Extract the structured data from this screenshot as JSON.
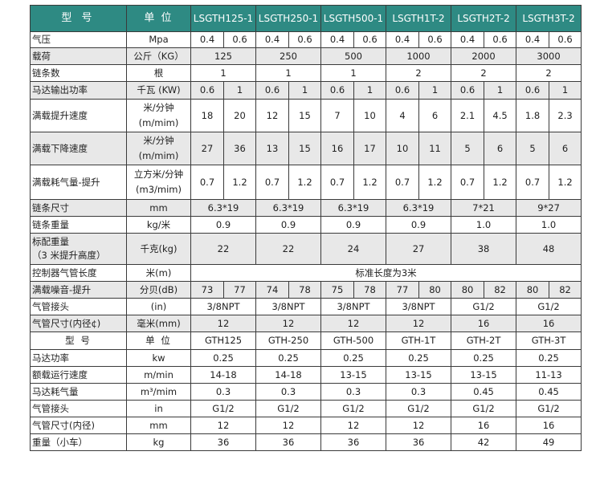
{
  "header": [
    "型 号",
    "单 位",
    "LSGTH125-1",
    "LSGTH250-1",
    "LSGTH500-1",
    "LSGTH1T-2",
    "LSGTH2T-2",
    "LSGTH3T-2"
  ],
  "rows": {
    "pressure": {
      "label": "气压",
      "unit": "Mpa",
      "cells": [
        "0.4",
        "0.6",
        "0.4",
        "0.6",
        "0.4",
        "0.6",
        "0.4",
        "0.6",
        "0.4",
        "0.6",
        "0.4",
        "0.6"
      ]
    },
    "load": {
      "label": "载荷",
      "unit": "公斤（KG）",
      "cells": [
        "125",
        "250",
        "500",
        "1000",
        "2000",
        "3000"
      ]
    },
    "chains": {
      "label": "链条数",
      "unit": "根",
      "cells": [
        "1",
        "1",
        "1",
        "2",
        "2",
        "2"
      ]
    },
    "motor_power": {
      "label": "马达输出功率",
      "unit": "千瓦 (KW)",
      "cells": [
        "0.6",
        "1",
        "0.6",
        "1",
        "0.6",
        "1",
        "0.6",
        "1",
        "0.6",
        "1",
        "0.6",
        "1"
      ]
    },
    "lift_speed": {
      "label": "满载提升速度",
      "unit1": "米/分钟",
      "unit2": "(m/mim)",
      "cells": [
        "18",
        "20",
        "12",
        "15",
        "7",
        "10",
        "4",
        "6",
        "2.1",
        "4.5",
        "1.8",
        "2.3"
      ]
    },
    "lower_speed": {
      "label": "满载下降速度",
      "unit1": "米/分钟",
      "unit2": "(m/mim)",
      "cells": [
        "27",
        "36",
        "13",
        "15",
        "16",
        "17",
        "10",
        "11",
        "5",
        "6",
        "5",
        "6"
      ]
    },
    "air_consumption": {
      "label": "满载耗气量-提升",
      "unit1": "立方米/分钟",
      "unit2": "(m3/mim)",
      "cells": [
        "0.7",
        "1.2",
        "0.7",
        "1.2",
        "0.7",
        "1.2",
        "0.7",
        "1.2",
        "0.7",
        "1.2",
        "0.7",
        "1.2"
      ]
    },
    "chain_size": {
      "label": "链条尺寸",
      "unit": "mm",
      "cells": [
        "6.3*19",
        "6.3*19",
        "6.3*19",
        "6.3*19",
        "7*21",
        "9*27"
      ]
    },
    "chain_weight": {
      "label": "链条重量",
      "unit": "kg/米",
      "cells": [
        "0.9",
        "0.9",
        "0.9",
        "0.9",
        "1.0",
        "1.0"
      ]
    },
    "std_weight": {
      "label1": "标配重量",
      "label2": "（3 米提升高度）",
      "unit": "千克(kg)",
      "cells": [
        "22",
        "22",
        "24",
        "27",
        "38",
        "48"
      ]
    },
    "controller_hose": {
      "label": "控制器气管长度",
      "unit": "米(m)",
      "value": "标准长度为3米"
    },
    "noise": {
      "label": "满载噪音-提升",
      "unit": "分贝(dB)",
      "cells": [
        "73",
        "77",
        "74",
        "78",
        "75",
        "78",
        "77",
        "80",
        "80",
        "82",
        "80",
        "82"
      ]
    },
    "air_fitting": {
      "label": "气管接头",
      "unit": "(in)",
      "cells": [
        "3/8NPT",
        "3/8NPT",
        "3/8NPT",
        "3/8NPT",
        "G1/2",
        "G1/2"
      ]
    },
    "hose_size": {
      "label": "气管尺寸(内径¢)",
      "unit": "毫米(mm)",
      "cells": [
        "12",
        "12",
        "12",
        "12",
        "16",
        "16"
      ]
    },
    "sub_header": {
      "label": "型 号",
      "unit": "单 位",
      "cells": [
        "GTH125",
        "GTH-250",
        "GTH-500",
        "GTH-1T",
        "GTH-2T",
        "GTH-3T"
      ]
    },
    "t_motor_power": {
      "label": "马达功率",
      "unit": "kw",
      "cells": [
        "0.25",
        "0.25",
        "0.25",
        "0.25",
        "0.25",
        "0.25"
      ]
    },
    "t_speed": {
      "label": "额载运行速度",
      "unit": "m/min",
      "cells": [
        "14-18",
        "14-18",
        "13-15",
        "13-15",
        "13-15",
        "11-13"
      ]
    },
    "t_air": {
      "label": "马达耗气量",
      "unit": "m³/mim",
      "cells": [
        "0.3",
        "0.3",
        "0.3",
        "0.3",
        "0.45",
        "0.45"
      ]
    },
    "t_fitting": {
      "label": "气管接头",
      "unit": "in",
      "cells": [
        "G1/2",
        "G1/2",
        "G1/2",
        "G1/2",
        "G1/2",
        "G1/2"
      ]
    },
    "t_hose": {
      "label": "气管尺寸(内径)",
      "unit": "mm",
      "cells": [
        "12",
        "12",
        "12",
        "12",
        "16",
        "16"
      ]
    },
    "t_weight": {
      "label": "重量（小车）",
      "unit": "kg",
      "cells": [
        "36",
        "36",
        "36",
        "36",
        "42",
        "49"
      ]
    }
  }
}
